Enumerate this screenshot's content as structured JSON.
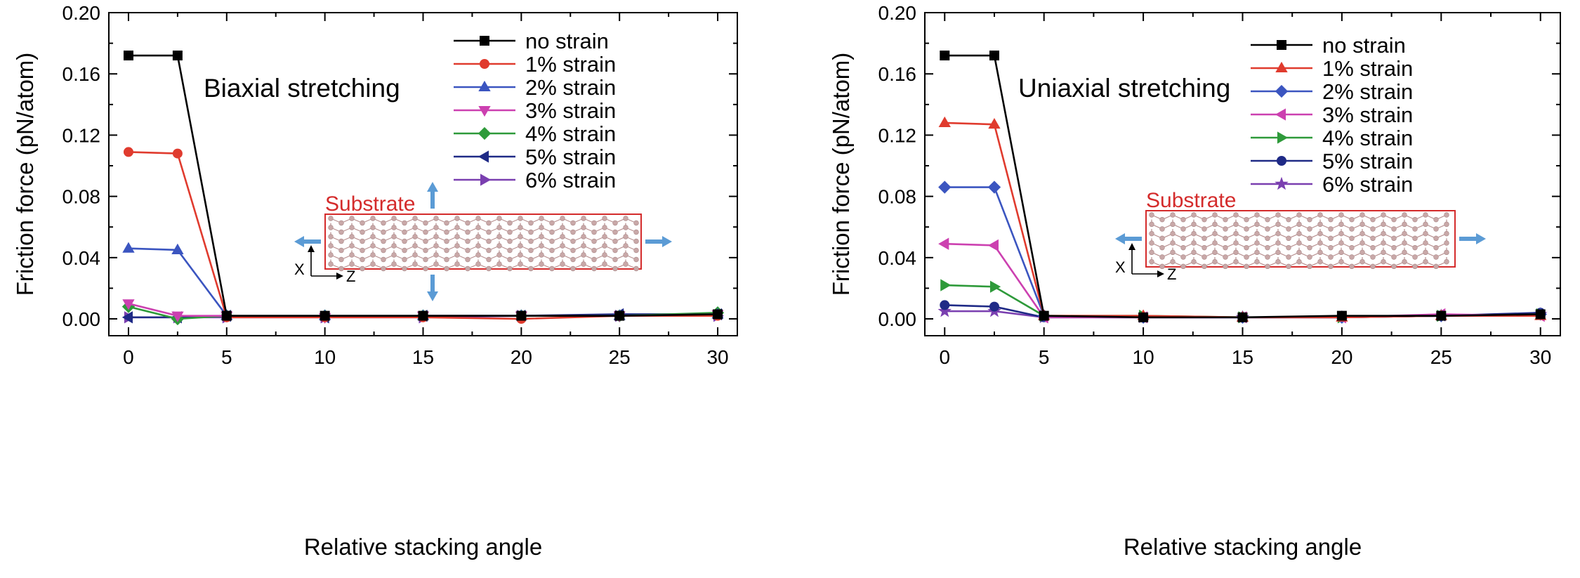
{
  "figure": {
    "axis_color": "#000000",
    "substrate_color": "#d42b2b",
    "arrow_color": "#5b9bd5",
    "atom_color": "#c9a8a8",
    "axis_label_x": "X",
    "axis_label_z": "Z",
    "substrate_label": "Substrate"
  },
  "chart_data": [
    {
      "type": "line",
      "title": "Biaxial stretching",
      "xlabel": "Relative stacking angle",
      "ylabel": "Friction force (pN/atom)",
      "xlim": [
        -1,
        31
      ],
      "ylim": [
        -0.011,
        0.2
      ],
      "xticks": [
        0,
        5,
        10,
        15,
        20,
        25,
        30
      ],
      "yticks": [
        0.0,
        0.04,
        0.08,
        0.12,
        0.16,
        0.2
      ],
      "ytick_labels": [
        "0.00",
        "0.04",
        "0.08",
        "0.12",
        "0.16",
        "0.20"
      ],
      "x": [
        0,
        2.5,
        5,
        10,
        15,
        20,
        25,
        30
      ],
      "legend_position": "top-right",
      "series": [
        {
          "name": "no strain",
          "color": "#000000",
          "marker": "square",
          "values": [
            0.172,
            0.172,
            0.002,
            0.002,
            0.002,
            0.002,
            0.002,
            0.003
          ]
        },
        {
          "name": "1% strain",
          "color": "#e03b2e",
          "marker": "circle",
          "values": [
            0.109,
            0.108,
            0.001,
            0.001,
            0.001,
            0.0,
            0.002,
            0.002
          ]
        },
        {
          "name": "2% strain",
          "color": "#3b55c0",
          "marker": "triangle-up",
          "values": [
            0.046,
            0.045,
            0.002,
            0.002,
            0.002,
            0.002,
            0.002,
            0.003
          ]
        },
        {
          "name": "3% strain",
          "color": "#cc40b0",
          "marker": "triangle-down",
          "values": [
            0.01,
            0.002,
            0.002,
            0.001,
            0.002,
            0.002,
            0.002,
            0.003
          ]
        },
        {
          "name": "4% strain",
          "color": "#2e9a3a",
          "marker": "diamond",
          "values": [
            0.008,
            0.0,
            0.002,
            0.002,
            0.002,
            0.002,
            0.002,
            0.004
          ]
        },
        {
          "name": "5% strain",
          "color": "#1f2a86",
          "marker": "triangle-left",
          "values": [
            0.001,
            0.001,
            0.002,
            0.001,
            0.002,
            0.002,
            0.003,
            0.003
          ]
        },
        {
          "name": "6% strain",
          "color": "#7a3fb0",
          "marker": "triangle-right",
          "values": [
            0.001,
            0.001,
            0.001,
            0.001,
            0.001,
            0.002,
            0.002,
            0.002
          ]
        }
      ]
    },
    {
      "type": "line",
      "title": "Uniaxial stretching",
      "xlabel": "Relative stacking angle",
      "ylabel": "Friction force (pN/atom)",
      "xlim": [
        -1,
        31
      ],
      "ylim": [
        -0.011,
        0.2
      ],
      "xticks": [
        0,
        5,
        10,
        15,
        20,
        25,
        30
      ],
      "yticks": [
        0.0,
        0.04,
        0.08,
        0.12,
        0.16,
        0.2
      ],
      "ytick_labels": [
        "0.00",
        "0.04",
        "0.08",
        "0.12",
        "0.16",
        "0.20"
      ],
      "x": [
        0,
        2.5,
        5,
        10,
        15,
        20,
        25,
        30
      ],
      "legend_position": "top-right",
      "series": [
        {
          "name": "no strain",
          "color": "#000000",
          "marker": "square",
          "values": [
            0.172,
            0.172,
            0.002,
            0.001,
            0.001,
            0.002,
            0.002,
            0.003
          ]
        },
        {
          "name": "1% strain",
          "color": "#e03b2e",
          "marker": "triangle-up",
          "values": [
            0.128,
            0.127,
            0.002,
            0.002,
            0.001,
            0.001,
            0.002,
            0.002
          ]
        },
        {
          "name": "2% strain",
          "color": "#3b55c0",
          "marker": "diamond",
          "values": [
            0.086,
            0.086,
            0.002,
            0.001,
            0.001,
            0.001,
            0.002,
            0.003
          ]
        },
        {
          "name": "3% strain",
          "color": "#cc40b0",
          "marker": "triangle-left",
          "values": [
            0.049,
            0.048,
            0.001,
            0.001,
            0.001,
            0.001,
            0.003,
            0.002
          ]
        },
        {
          "name": "4% strain",
          "color": "#2e9a3a",
          "marker": "triangle-right",
          "values": [
            0.022,
            0.021,
            0.002,
            0.002,
            0.001,
            0.001,
            0.002,
            0.003
          ]
        },
        {
          "name": "5% strain",
          "color": "#1f2a86",
          "marker": "circle",
          "values": [
            0.009,
            0.008,
            0.001,
            0.001,
            0.001,
            0.001,
            0.002,
            0.004
          ]
        },
        {
          "name": "6% strain",
          "color": "#7a3fb0",
          "marker": "star",
          "values": [
            0.005,
            0.005,
            0.001,
            0.001,
            0.001,
            0.001,
            0.002,
            0.003
          ]
        }
      ]
    }
  ]
}
